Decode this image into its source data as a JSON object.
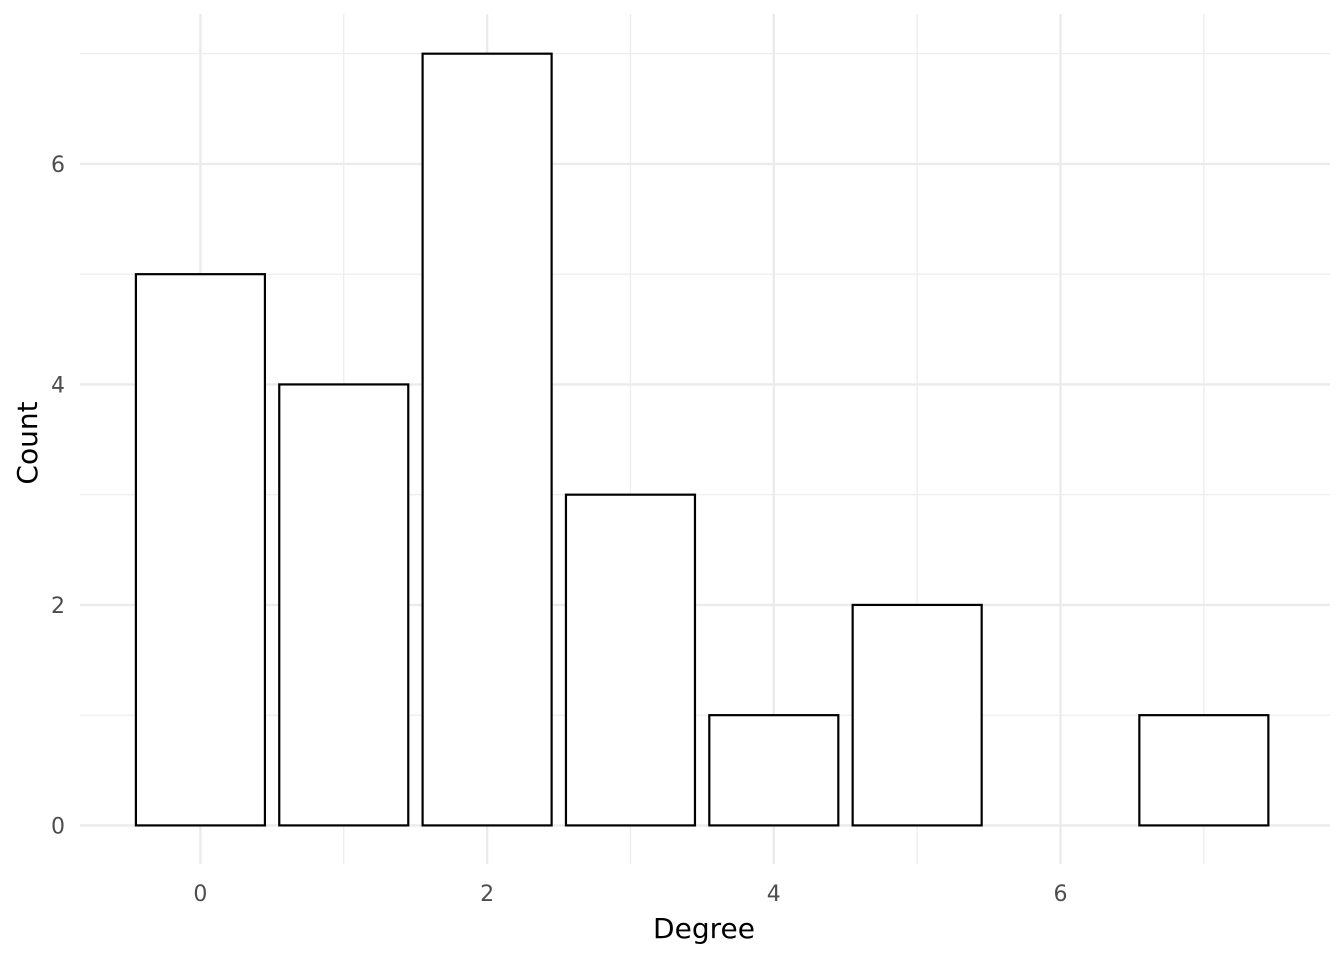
{
  "chart_data": {
    "type": "bar",
    "x": [
      0,
      1,
      2,
      3,
      4,
      5,
      7
    ],
    "values": [
      5,
      4,
      7,
      3,
      1,
      2,
      1
    ],
    "xlabel": "Degree",
    "ylabel": "Count",
    "xlim": [
      -0.84,
      7.88
    ],
    "ylim": [
      -0.35,
      7.36
    ],
    "x_ticks": [
      0,
      2,
      4,
      6
    ],
    "y_ticks": [
      0,
      2,
      4,
      6
    ],
    "x_minor_ticks": [
      1,
      3,
      5,
      7
    ],
    "y_minor_ticks": [
      1,
      3,
      5,
      7
    ],
    "grid": true,
    "bar_fill": "#ffffff",
    "bar_stroke": "#000000",
    "grid_color": "#ebebeb",
    "tick_label_color": "#4d4d4d"
  }
}
